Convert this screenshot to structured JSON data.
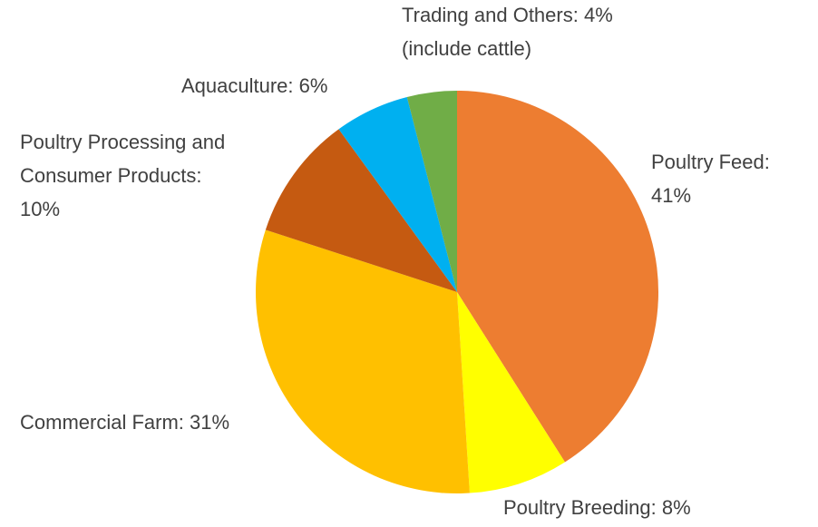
{
  "chart_data": {
    "type": "pie",
    "values": [
      41,
      8,
      31,
      10,
      6,
      4
    ],
    "value_labels": [
      "Poultry Feed:\n41%",
      "Poultry Breeding: 8%",
      "Commercial Farm: 31%",
      "Poultry Processing and\nConsumer Products:\n10%",
      "Aquaculture: 6%",
      "Trading and Others: 4%\n(include cattle)"
    ],
    "colors": [
      "#ED7D31",
      "#FFFF00",
      "#FFC000",
      "#C55A11",
      "#00B0F0",
      "#70AD47"
    ]
  }
}
